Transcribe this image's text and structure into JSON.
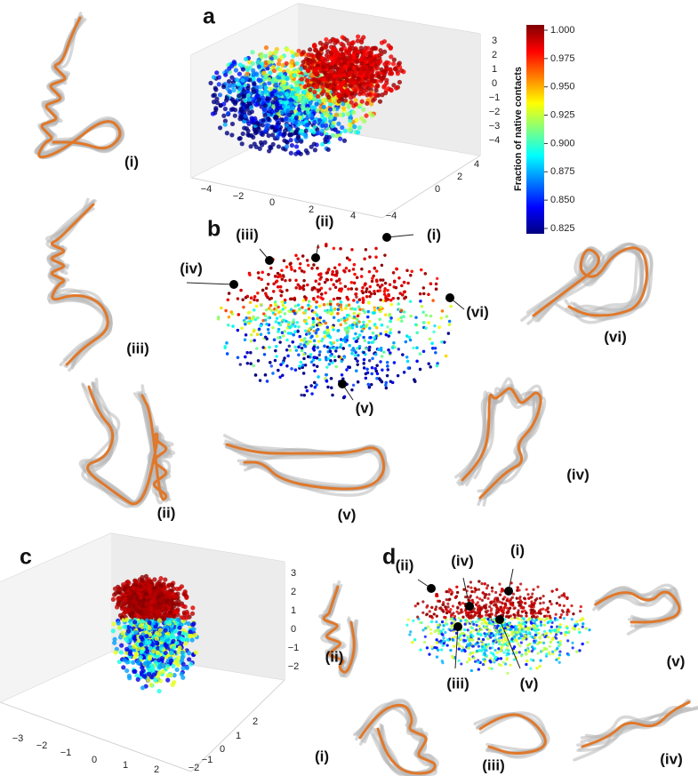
{
  "colorbar": {
    "title": "Fraction of native contacts",
    "ticks": [
      {
        "value": 1.0,
        "label": "1.000"
      },
      {
        "value": 0.975,
        "label": "0.975"
      },
      {
        "value": 0.95,
        "label": "0.950"
      },
      {
        "value": 0.925,
        "label": "0.925"
      },
      {
        "value": 0.9,
        "label": "0.900"
      },
      {
        "value": 0.875,
        "label": "0.875"
      },
      {
        "value": 0.85,
        "label": "0.850"
      },
      {
        "value": 0.825,
        "label": "0.825"
      }
    ]
  },
  "panel_a": {
    "label": "a",
    "z_ticks": [
      "3",
      "2",
      "1",
      "0",
      "−1",
      "−2",
      "−3",
      "−4"
    ],
    "x_ticks": [
      "−4",
      "−2",
      "0",
      "2",
      "4"
    ],
    "y_ticks": [
      "4",
      "2",
      "0",
      "−4"
    ]
  },
  "panel_b": {
    "label": "b",
    "point_labels": [
      "(i)",
      "(ii)",
      "(iii)",
      "(iv)",
      "(v)",
      "(vi)"
    ],
    "structure_labels": [
      "(i)",
      "(iii)",
      "(vi)",
      "(ii)",
      "(v)",
      "(iv)"
    ]
  },
  "panel_c": {
    "label": "c",
    "z_ticks": [
      "3",
      "2",
      "1",
      "0",
      "−1",
      "−2"
    ],
    "x_ticks": [
      "−3",
      "−2",
      "−1",
      "0",
      "1",
      "2"
    ],
    "y_ticks": [
      "2",
      "1",
      "0",
      "−1",
      "−2"
    ]
  },
  "panel_d": {
    "label": "d",
    "point_labels": [
      "(i)",
      "(ii)",
      "(iii)",
      "(iv)",
      "(v)"
    ],
    "structure_labels": [
      "(ii)",
      "(v)",
      "(i)",
      "(iii)",
      "(iv)"
    ]
  }
}
